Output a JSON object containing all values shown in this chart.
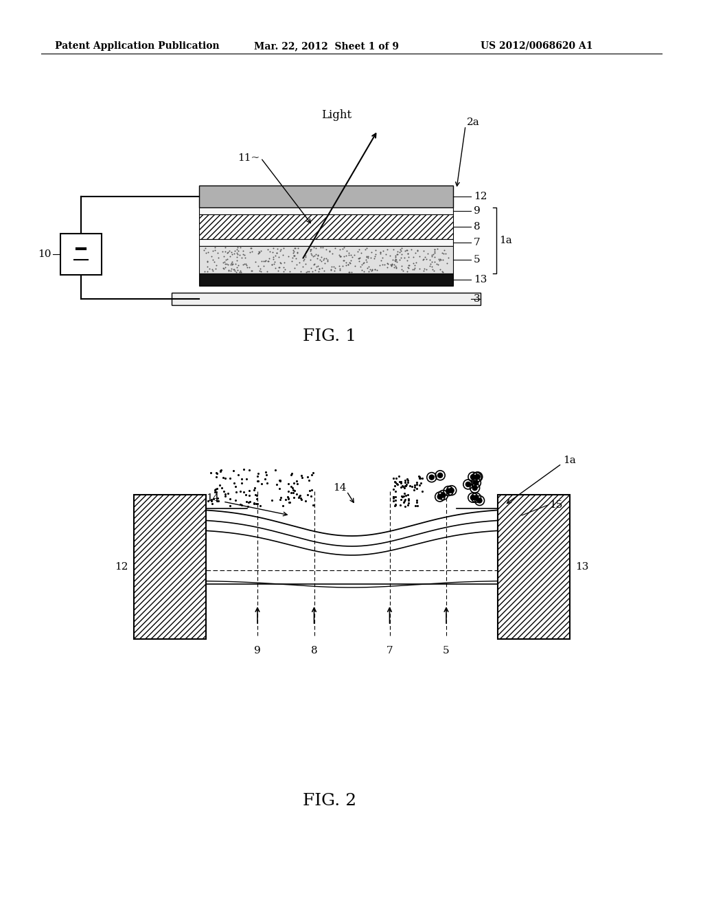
{
  "bg_color": "#ffffff",
  "header_left": "Patent Application Publication",
  "header_mid": "Mar. 22, 2012  Sheet 1 of 9",
  "header_right": "US 2012/0068620 A1",
  "fig1_caption": "FIG. 1",
  "fig2_caption": "FIG. 2"
}
